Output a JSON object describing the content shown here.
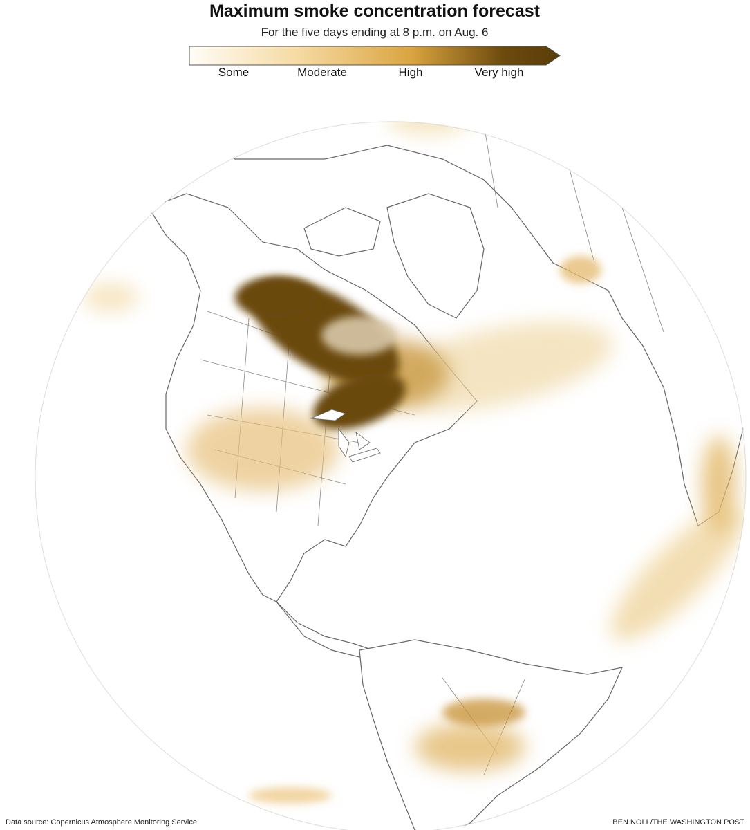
{
  "header": {
    "title": "Maximum smoke concentration forecast",
    "subtitle": "For the five days ending at 8 p.m. on Aug. 6"
  },
  "legend": {
    "labels": [
      "Some",
      "Moderate",
      "High",
      "Very high"
    ]
  },
  "footer": {
    "source": "Data source: Copernicus Atmosphere Monitoring Service",
    "credit": "BEN NOLL/THE WASHINGTON POST"
  }
}
